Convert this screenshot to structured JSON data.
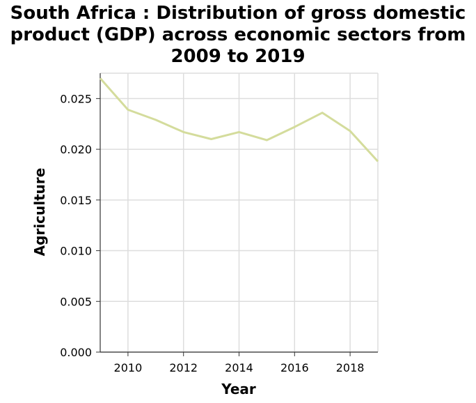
{
  "chart_data": {
    "type": "line",
    "title_lines": [
      "South Africa : Distribution of gross domestic",
      "product (GDP) across economic sectors from",
      "2009 to 2019"
    ],
    "xlabel": "Year",
    "ylabel": "Agriculture",
    "xlim": [
      2009,
      2019
    ],
    "ylim": [
      0,
      0.0275
    ],
    "x_ticks": [
      2010,
      2012,
      2014,
      2016,
      2018
    ],
    "y_ticks": [
      0.0,
      0.005,
      0.01,
      0.015,
      0.02,
      0.025
    ],
    "y_tick_labels": [
      "0.000",
      "0.005",
      "0.010",
      "0.015",
      "0.020",
      "0.025"
    ],
    "grid": true,
    "line_color": "#d4dc9c",
    "series": [
      {
        "x": [
          2009,
          2010,
          2011,
          2012,
          2013,
          2014,
          2015,
          2016,
          2017,
          2018,
          2019
        ],
        "values": [
          0.027,
          0.0239,
          0.0229,
          0.0217,
          0.021,
          0.0217,
          0.0209,
          0.0222,
          0.0236,
          0.0218,
          0.0188
        ]
      }
    ]
  }
}
